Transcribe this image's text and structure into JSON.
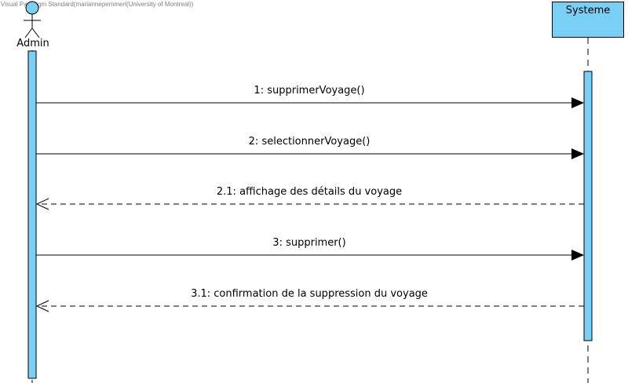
{
  "watermark": "Visual Paradigm Standard(mariannepemmerl(University of Montreal))",
  "actor": {
    "name": "Admin"
  },
  "object": {
    "name": "Systeme"
  },
  "colors": {
    "fill": "#7acff5",
    "line": "#000000"
  },
  "messages": [
    {
      "label": "1: supprimerVoyage()",
      "kind": "sync",
      "direction": "Admin→Systeme"
    },
    {
      "label": "2: selectionnerVoyage()",
      "kind": "sync",
      "direction": "Admin→Systeme"
    },
    {
      "label": "2.1: affichage des détails du voyage",
      "kind": "return",
      "direction": "Systeme→Admin"
    },
    {
      "label": "3: supprimer()",
      "kind": "sync",
      "direction": "Admin→Systeme"
    },
    {
      "label": "3.1: confirmation de la suppression du voyage",
      "kind": "return",
      "direction": "Systeme→Admin"
    }
  ]
}
